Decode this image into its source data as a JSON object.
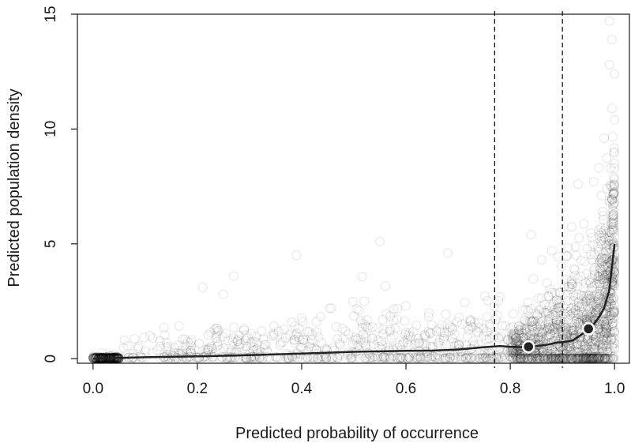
{
  "chart_data": {
    "type": "scatter",
    "title": "",
    "xlabel": "Predicted probability of occurrence",
    "ylabel": "Predicted population density",
    "xlim": [
      -0.03,
      1.03
    ],
    "ylim": [
      -0.2,
      15
    ],
    "xticks": [
      0.0,
      0.2,
      0.4,
      0.6,
      0.8,
      1.0
    ],
    "xtick_labels": [
      "0.0",
      "0.2",
      "0.4",
      "0.6",
      "0.8",
      "1.0"
    ],
    "yticks": [
      0,
      5,
      10,
      15
    ],
    "ytick_labels": [
      "0",
      "5",
      "10",
      "15"
    ],
    "grid": false,
    "legend": "none",
    "vertical_reference_lines": [
      0.77,
      0.9
    ],
    "smooth_fit": {
      "x": [
        0.0,
        0.02,
        0.05,
        0.1,
        0.2,
        0.3,
        0.4,
        0.5,
        0.6,
        0.65,
        0.7,
        0.75,
        0.78,
        0.8,
        0.82,
        0.835,
        0.85,
        0.87,
        0.89,
        0.9,
        0.91,
        0.92,
        0.93,
        0.94,
        0.95,
        0.96,
        0.97,
        0.98,
        0.99,
        1.0
      ],
      "y": [
        0.0,
        0.02,
        0.03,
        0.06,
        0.1,
        0.15,
        0.22,
        0.3,
        0.34,
        0.35,
        0.4,
        0.5,
        0.55,
        0.52,
        0.5,
        0.52,
        0.55,
        0.6,
        0.7,
        0.72,
        0.75,
        0.8,
        0.95,
        1.1,
        1.3,
        1.5,
        1.8,
        2.2,
        3.0,
        5.0
      ]
    },
    "highlight_points": [
      {
        "x": 0.835,
        "y": 0.52
      },
      {
        "x": 0.95,
        "y": 1.3
      }
    ],
    "scatter_notes": "thousands of semi-transparent open circles; dense cluster near x=0 and x=1",
    "colors": {
      "points": "#000000",
      "fit_line": "#222222",
      "highlight_fill": "#222222",
      "highlight_ring": "#ffffff",
      "reference_lines": "#000000"
    }
  }
}
